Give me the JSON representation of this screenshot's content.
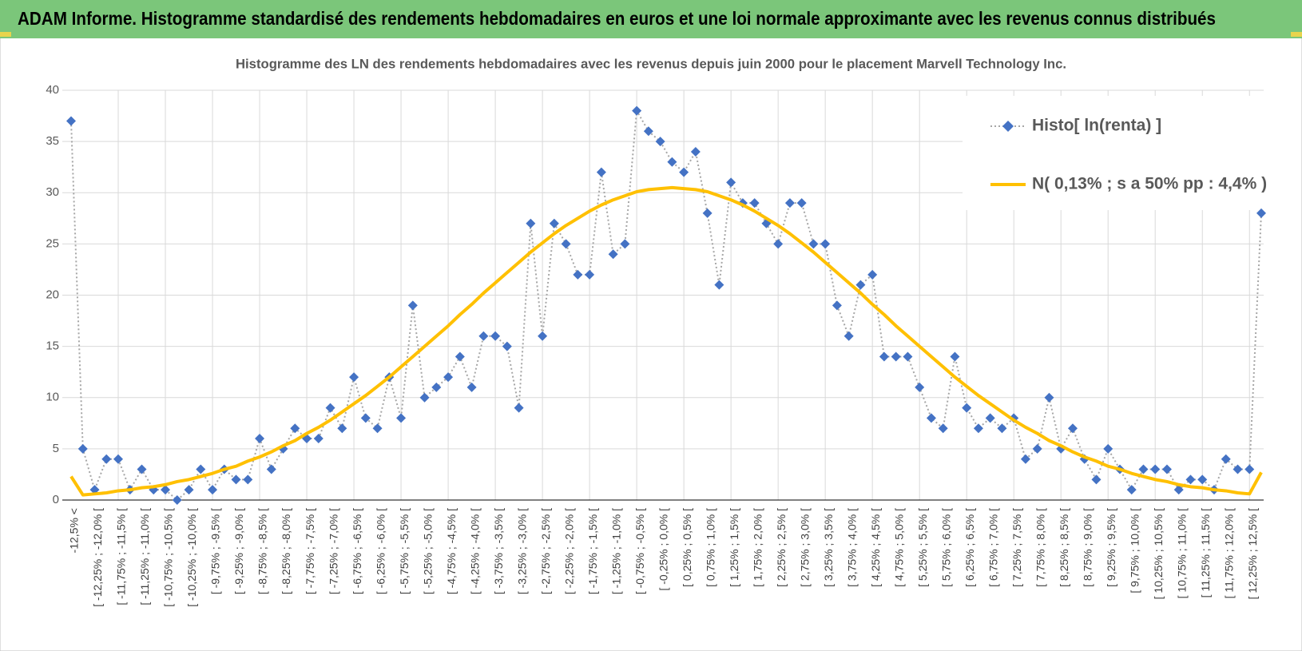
{
  "header": {
    "title": "ADAM Informe. Histogramme standardisé des rendements hebdomadaires en euros et une loi normale approximante avec les revenus connus distribués"
  },
  "chart_data": {
    "type": "line",
    "title": "Histogramme des LN des rendements hebdomadaires avec les revenus depuis juin 2000 pour le placement Marvell Technology Inc.",
    "categories": [
      "-12,5% <",
      null,
      "[ -12,25% ; -12,0% [",
      null,
      "[ -11,75% ; -11,5% [",
      null,
      "[ -11,25% ; -11,0% [",
      null,
      "[ -10,75% ; -10,5% [",
      null,
      "[ -10,25% ; -10,0% [",
      null,
      "[ -9,75% ; -9,5% [",
      null,
      "[ -9,25% ; -9,0% [",
      null,
      "[ -8,75% ; -8,5% [",
      null,
      "[ -8,25% ; -8,0% [",
      null,
      "[ -7,75% ; -7,5% [",
      null,
      "[ -7,25% ; -7,0% [",
      null,
      "[ -6,75% ; -6,5% [",
      null,
      "[ -6,25% ; -6,0% [",
      null,
      "[ -5,75% ; -5,5% [",
      null,
      "[ -5,25% ; -5,0% [",
      null,
      "[ -4,75% ; -4,5% [",
      null,
      "[ -4,25% ; -4,0% [",
      null,
      "[ -3,75% ; -3,5% [",
      null,
      "[ -3,25% ; -3,0% [",
      null,
      "[ -2,75% ; -2,5% [",
      null,
      "[ -2,25% ; -2,0% [",
      null,
      "[ -1,75% ; -1,5% [",
      null,
      "[ -1,25% ; -1,0% [",
      null,
      "[ -0,75% ; -0,5% [",
      null,
      "[ -0,25% ; 0,0% [",
      null,
      "[ 0,25% ; 0,5% [",
      null,
      "[ 0,75% ; 1,0% [",
      null,
      "[ 1,25% ; 1,5% [",
      null,
      "[ 1,75% ; 2,0% [",
      null,
      "[ 2,25% ; 2,5% [",
      null,
      "[ 2,75% ; 3,0% [",
      null,
      "[ 3,25% ; 3,5% [",
      null,
      "[ 3,75% ; 4,0% [",
      null,
      "[ 4,25% ; 4,5% [",
      null,
      "[ 4,75% ; 5,0% [",
      null,
      "[ 5,25% ; 5,5% [",
      null,
      "[ 5,75% ; 6,0% [",
      null,
      "[ 6,25% ; 6,5% [",
      null,
      "[ 6,75% ; 7,0% [",
      null,
      "[ 7,25% ; 7,5% [",
      null,
      "[ 7,75% ; 8,0% [",
      null,
      "[ 8,25% ; 8,5% [",
      null,
      "[ 8,75% ; 9,0% [",
      null,
      "[ 9,25% ; 9,5% [",
      null,
      "[ 9,75% ; 10,0% [",
      null,
      "[ 10,25% ; 10,5% [",
      null,
      "[ 10,75% ; 11,0% [",
      null,
      "[ 11,25% ; 11,5% [",
      null,
      "[ 11,75% ; 12,0% [",
      null,
      "[ 12,25% ; 12,5% [",
      null
    ],
    "series": [
      {
        "name": "Histo[ ln(renta) ]",
        "color": "#4472c4",
        "line_color": "#a6a6a6",
        "values": [
          37,
          5,
          1,
          4,
          4,
          1,
          3,
          1,
          1,
          0,
          1,
          3,
          1,
          3,
          2,
          2,
          6,
          3,
          5,
          7,
          6,
          6,
          9,
          7,
          12,
          8,
          7,
          12,
          8,
          19,
          10,
          11,
          12,
          14,
          11,
          16,
          16,
          15,
          9,
          27,
          16,
          27,
          25,
          22,
          22,
          32,
          24,
          25,
          38,
          36,
          35,
          33,
          32,
          34,
          28,
          21,
          31,
          29,
          29,
          27,
          25,
          29,
          29,
          25,
          25,
          19,
          16,
          21,
          22,
          14,
          14,
          14,
          11,
          8,
          7,
          14,
          9,
          7,
          8,
          7,
          8,
          4,
          5,
          10,
          5,
          7,
          4,
          2,
          5,
          3,
          1,
          3,
          3,
          3,
          1,
          2,
          2,
          1,
          4,
          3,
          3,
          28
        ]
      },
      {
        "name": "N( 0,13% ; s a 50% pp : 4,4% )",
        "color": "#ffc000",
        "values": [
          2.3,
          0.5,
          0.6,
          0.7,
          0.9,
          1.0,
          1.2,
          1.3,
          1.5,
          1.8,
          2.0,
          2.3,
          2.6,
          3.0,
          3.3,
          3.8,
          4.2,
          4.7,
          5.3,
          5.8,
          6.5,
          7.1,
          7.8,
          8.6,
          9.4,
          10.2,
          11.1,
          12.0,
          13.0,
          14.0,
          15.0,
          16.0,
          17.0,
          18.1,
          19.1,
          20.2,
          21.2,
          22.2,
          23.2,
          24.2,
          25.1,
          26.0,
          26.8,
          27.5,
          28.2,
          28.8,
          29.3,
          29.7,
          30.1,
          30.3,
          30.4,
          30.5,
          30.4,
          30.3,
          30.1,
          29.7,
          29.3,
          28.8,
          28.2,
          27.5,
          26.8,
          26.0,
          25.1,
          24.2,
          23.2,
          22.2,
          21.2,
          20.2,
          19.1,
          18.1,
          17.0,
          16.0,
          15.0,
          14.0,
          13.0,
          12.0,
          11.1,
          10.2,
          9.4,
          8.6,
          7.8,
          7.1,
          6.5,
          5.8,
          5.3,
          4.7,
          4.2,
          3.8,
          3.3,
          3.0,
          2.6,
          2.3,
          2.0,
          1.8,
          1.5,
          1.3,
          1.2,
          1.0,
          0.9,
          0.7,
          0.6,
          2.7
        ]
      }
    ],
    "ylim": [
      0,
      40
    ],
    "yticks": [
      0,
      5,
      10,
      15,
      20,
      25,
      30,
      35,
      40
    ],
    "grid": true,
    "legend": "top-right"
  }
}
